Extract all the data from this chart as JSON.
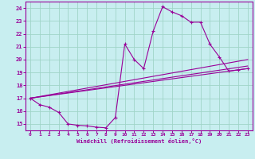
{
  "background_color": "#c8eef0",
  "grid_color": "#a0d4c8",
  "line_color": "#990099",
  "xlabel": "Windchill (Refroidissement éolien,°C)",
  "xlim": [
    -0.5,
    23.5
  ],
  "ylim": [
    14.5,
    24.5
  ],
  "yticks": [
    15,
    16,
    17,
    18,
    19,
    20,
    21,
    22,
    23,
    24
  ],
  "xticks": [
    0,
    1,
    2,
    3,
    4,
    5,
    6,
    7,
    8,
    9,
    10,
    11,
    12,
    13,
    14,
    15,
    16,
    17,
    18,
    19,
    20,
    21,
    22,
    23
  ],
  "series_main": {
    "x": [
      0,
      1,
      2,
      3,
      4,
      5,
      6,
      7,
      8,
      9,
      10,
      11,
      12,
      13,
      14,
      15,
      16,
      17,
      18,
      19,
      20,
      21,
      22,
      23
    ],
    "y": [
      17.0,
      16.5,
      16.3,
      15.9,
      15.0,
      14.9,
      14.85,
      14.75,
      14.7,
      15.5,
      21.2,
      20.0,
      19.3,
      22.2,
      24.1,
      23.7,
      23.4,
      22.9,
      22.9,
      21.2,
      20.2,
      19.1,
      19.2,
      19.3
    ]
  },
  "series_linear": [
    {
      "x": [
        0,
        23
      ],
      "y": [
        17.0,
        19.3
      ]
    },
    {
      "x": [
        0,
        23
      ],
      "y": [
        17.0,
        19.5
      ]
    },
    {
      "x": [
        0,
        23
      ],
      "y": [
        17.0,
        20.0
      ]
    }
  ]
}
